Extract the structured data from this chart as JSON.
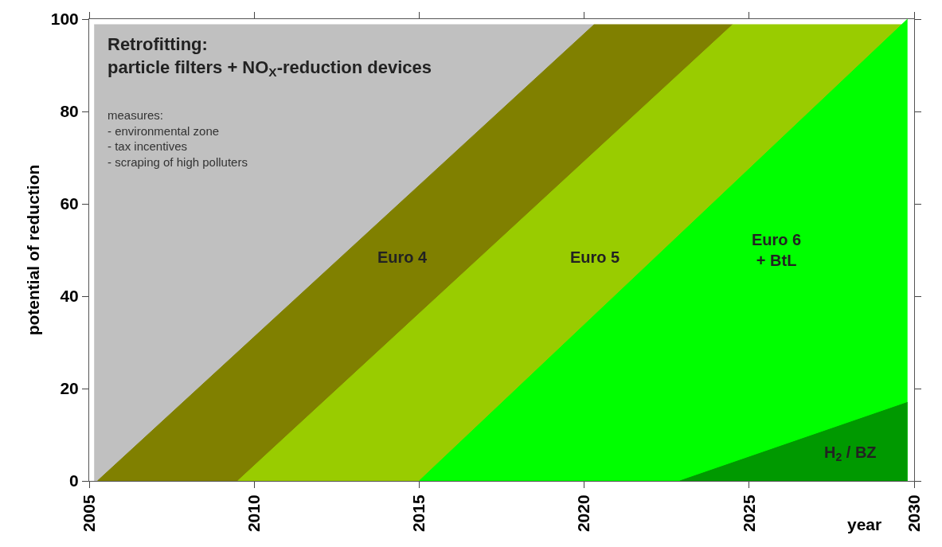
{
  "chart_data": {
    "type": "area",
    "ylabel": "potential of reduction",
    "xlabel": "year",
    "xlim": [
      2005,
      2030
    ],
    "xticks": [
      2005,
      2010,
      2015,
      2020,
      2025,
      2030
    ],
    "ylim": [
      0,
      100
    ],
    "yticks": [
      0,
      20,
      40,
      60,
      80,
      100
    ],
    "legend": false,
    "annotations": [
      "measures:\n- environmental zone\n- tax incentives\n- scraping of high polluters"
    ],
    "series": [
      {
        "name": "Retrofitting:\nparticle filters + NO$_{X}$-reduction devices",
        "color": "#c0c0c0",
        "x": [
          2005.15,
          2020.3
        ],
        "values": [
          98.8,
          98.8
        ]
      },
      {
        "name": "Euro 4",
        "color": "#808000",
        "x": [
          2005.25,
          2020.3,
          2024.5
        ],
        "values": [
          0,
          98.8,
          98.8
        ]
      },
      {
        "name": "Euro 5",
        "color": "#99cc00",
        "x": [
          2009.5,
          2024.5,
          2029.62
        ],
        "values": [
          0,
          98.8,
          98.8
        ]
      },
      {
        "name": "Euro 6\n+ BtL",
        "color": "#00ff00",
        "x": [
          2015.0,
          2029.8
        ],
        "values": [
          0,
          100
        ]
      },
      {
        "name": "H$_{2}$ / BZ",
        "color": "#009900",
        "x": [
          2022.9,
          2029.8
        ],
        "values": [
          0,
          17
        ]
      }
    ]
  }
}
